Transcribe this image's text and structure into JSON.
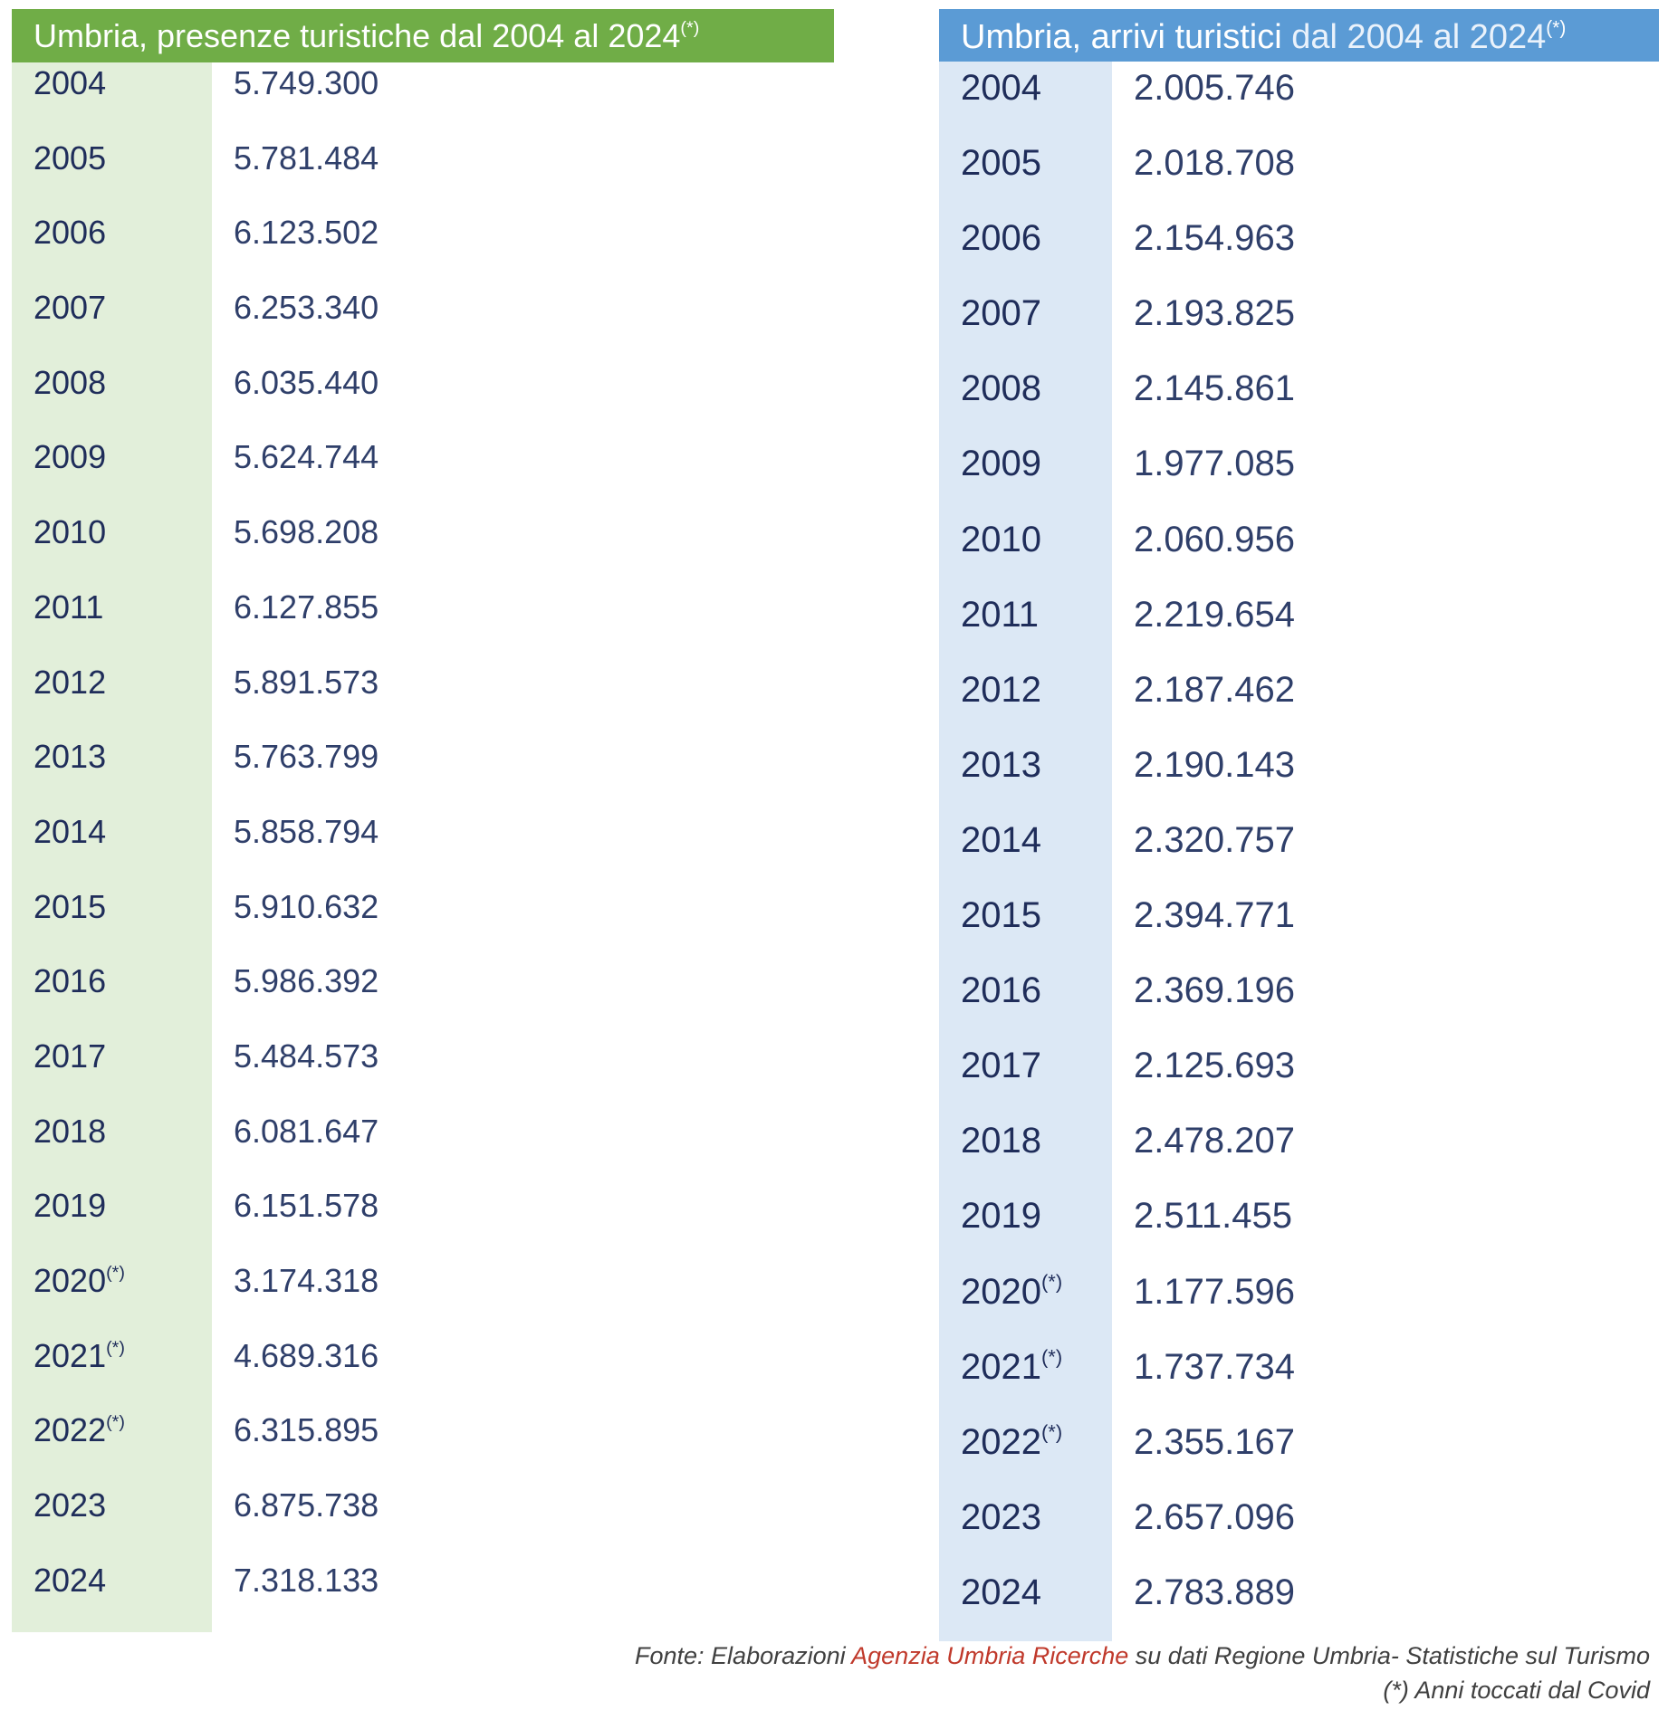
{
  "presenze": {
    "title": "Umbria, presenze turistiche dal 2004 al 2024",
    "title_mark": "(*)",
    "header_color": "#70ad47",
    "year_column_color": "#e2efda",
    "rows": [
      {
        "year": "2004",
        "mark": "",
        "value": "5.749.300"
      },
      {
        "year": "2005",
        "mark": "",
        "value": "5.781.484"
      },
      {
        "year": "2006",
        "mark": "",
        "value": "6.123.502"
      },
      {
        "year": "2007",
        "mark": "",
        "value": "6.253.340"
      },
      {
        "year": "2008",
        "mark": "",
        "value": "6.035.440"
      },
      {
        "year": "2009",
        "mark": "",
        "value": "5.624.744"
      },
      {
        "year": "2010",
        "mark": "",
        "value": "5.698.208"
      },
      {
        "year": "2011",
        "mark": "",
        "value": "6.127.855"
      },
      {
        "year": "2012",
        "mark": "",
        "value": "5.891.573"
      },
      {
        "year": "2013",
        "mark": "",
        "value": "5.763.799"
      },
      {
        "year": "2014",
        "mark": "",
        "value": "5.858.794"
      },
      {
        "year": "2015",
        "mark": "",
        "value": "5.910.632"
      },
      {
        "year": "2016",
        "mark": "",
        "value": "5.986.392"
      },
      {
        "year": "2017",
        "mark": "",
        "value": "5.484.573"
      },
      {
        "year": "2018",
        "mark": "",
        "value": "6.081.647"
      },
      {
        "year": "2019",
        "mark": "",
        "value": "6.151.578"
      },
      {
        "year": "2020",
        "mark": "(*)",
        "value": "3.174.318"
      },
      {
        "year": "2021",
        "mark": "(*)",
        "value": "4.689.316"
      },
      {
        "year": "2022",
        "mark": "(*)",
        "value": "6.315.895"
      },
      {
        "year": "2023",
        "mark": "",
        "value": "6.875.738"
      },
      {
        "year": "2024",
        "mark": "",
        "value": "7.318.133"
      }
    ]
  },
  "arrivi": {
    "title_bold": "Umbria, arrivi turistici",
    "title_light": "dal 2004 al 2024",
    "title_mark": "(*)",
    "header_color": "#5b9bd5",
    "year_column_color": "#dce8f5",
    "rows": [
      {
        "year": "2004",
        "mark": "",
        "value": "2.005.746"
      },
      {
        "year": "2005",
        "mark": "",
        "value": "2.018.708"
      },
      {
        "year": "2006",
        "mark": "",
        "value": "2.154.963"
      },
      {
        "year": "2007",
        "mark": "",
        "value": "2.193.825"
      },
      {
        "year": "2008",
        "mark": "",
        "value": "2.145.861"
      },
      {
        "year": "2009",
        "mark": "",
        "value": "1.977.085"
      },
      {
        "year": "2010",
        "mark": "",
        "value": "2.060.956"
      },
      {
        "year": "2011",
        "mark": "",
        "value": "2.219.654"
      },
      {
        "year": "2012",
        "mark": "",
        "value": "2.187.462"
      },
      {
        "year": "2013",
        "mark": "",
        "value": "2.190.143"
      },
      {
        "year": "2014",
        "mark": "",
        "value": "2.320.757"
      },
      {
        "year": "2015",
        "mark": "",
        "value": "2.394.771"
      },
      {
        "year": "2016",
        "mark": "",
        "value": "2.369.196"
      },
      {
        "year": "2017",
        "mark": "",
        "value": "2.125.693"
      },
      {
        "year": "2018",
        "mark": "",
        "value": "2.478.207"
      },
      {
        "year": "2019",
        "mark": "",
        "value": "2.511.455"
      },
      {
        "year": "2020",
        "mark": "(*)",
        "value": "1.177.596"
      },
      {
        "year": "2021",
        "mark": "(*)",
        "value": "1.737.734"
      },
      {
        "year": "2022",
        "mark": "(*)",
        "value": "2.355.167"
      },
      {
        "year": "2023",
        "mark": "",
        "value": "2.657.096"
      },
      {
        "year": "2024",
        "mark": "",
        "value": "2.783.889"
      }
    ]
  },
  "footer": {
    "source_prefix": "Fonte: Elaborazioni",
    "source_agency": "Agenzia Umbria Ricerche",
    "source_suffix": "su dati Regione Umbria- Statistiche sul Turismo",
    "source_agency_color": "#c0392b",
    "note": "(*) Anni toccati dal Covid"
  }
}
